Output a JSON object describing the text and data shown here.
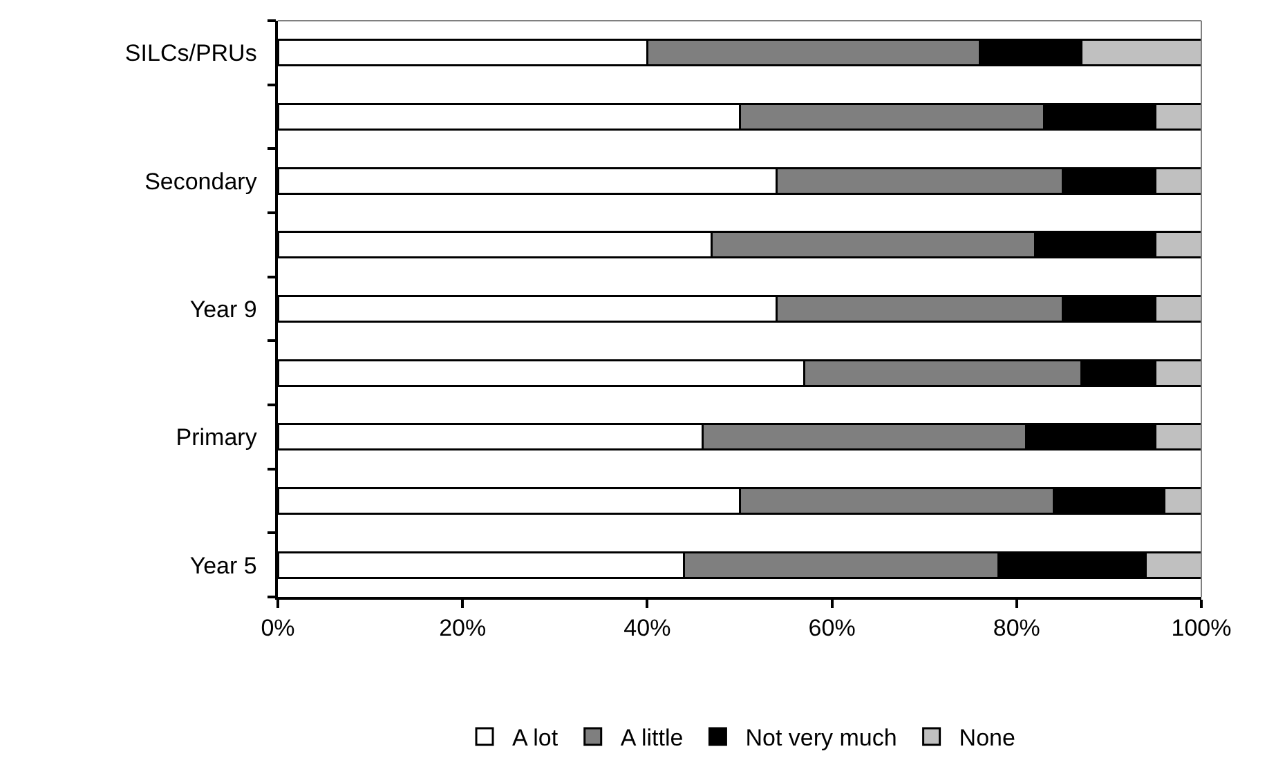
{
  "chart_data": {
    "type": "bar",
    "orientation": "horizontal",
    "stacked": true,
    "categories": [
      "SILCs/PRUs",
      null,
      "Secondary",
      null,
      "Year 9",
      null,
      "Primary",
      null,
      "Year 5"
    ],
    "series": [
      {
        "name": "A lot",
        "color": "#ffffff",
        "values": [
          40,
          50,
          54,
          47,
          54,
          57,
          46,
          50,
          44
        ]
      },
      {
        "name": "A little",
        "color": "#7f7f7f",
        "values": [
          36,
          33,
          31,
          35,
          31,
          30,
          35,
          34,
          34
        ]
      },
      {
        "name": "Not very much",
        "color": "#000000",
        "values": [
          11,
          12,
          10,
          13,
          10,
          8,
          14,
          12,
          16
        ]
      },
      {
        "name": "None",
        "color": "#c0c0c0",
        "values": [
          13,
          5,
          5,
          5,
          5,
          5,
          5,
          4,
          6
        ]
      }
    ],
    "xlim": [
      0,
      100
    ],
    "xticks": [
      {
        "value": 0,
        "label": "0%"
      },
      {
        "value": 20,
        "label": "20%"
      },
      {
        "value": 40,
        "label": "40%"
      },
      {
        "value": 60,
        "label": "60%"
      },
      {
        "value": 80,
        "label": "80%"
      },
      {
        "value": 100,
        "label": "100%"
      }
    ],
    "legend": "bottom"
  }
}
